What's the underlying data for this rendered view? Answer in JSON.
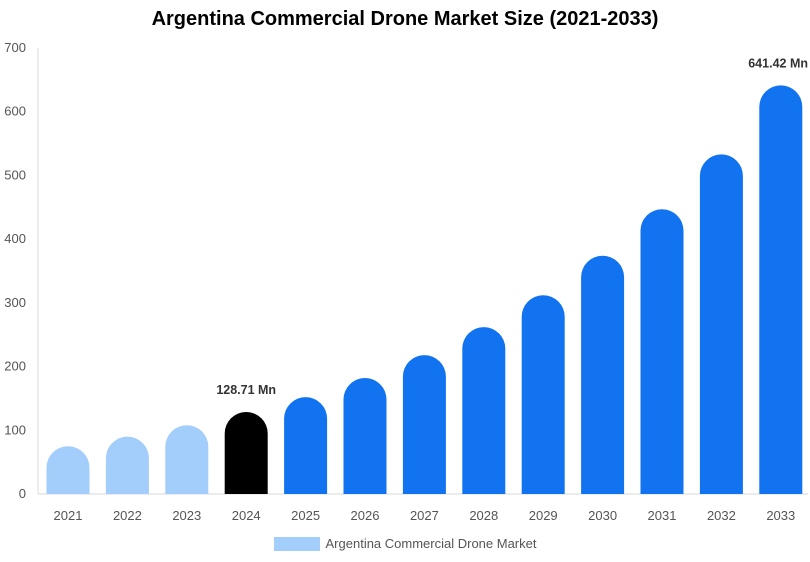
{
  "chart_data": {
    "type": "bar",
    "title": "Argentina Commercial Drone Market Size (2021-2033)",
    "categories": [
      "2021",
      "2022",
      "2023",
      "2024",
      "2025",
      "2026",
      "2027",
      "2028",
      "2029",
      "2030",
      "2031",
      "2032",
      "2033"
    ],
    "series": [
      {
        "name": "Argentina Commercial Drone Market",
        "values": [
          75,
          90,
          108,
          128.71,
          152,
          182,
          218,
          262,
          312,
          374,
          447,
          533,
          641.42
        ]
      }
    ],
    "ylim": [
      0,
      700
    ],
    "yticks": [
      0,
      100,
      200,
      300,
      400,
      500,
      600,
      700
    ],
    "data_labels": [
      {
        "index": 3,
        "text": "128.71 Mn"
      },
      {
        "index": 12,
        "text": "641.42 Mn"
      }
    ],
    "grid": false,
    "legend": "bottom-center",
    "colors": {
      "historical": "#a3cdfb",
      "base_year": "#000000",
      "forecast": "#1273f0",
      "legend": "#a3cdfb"
    }
  }
}
